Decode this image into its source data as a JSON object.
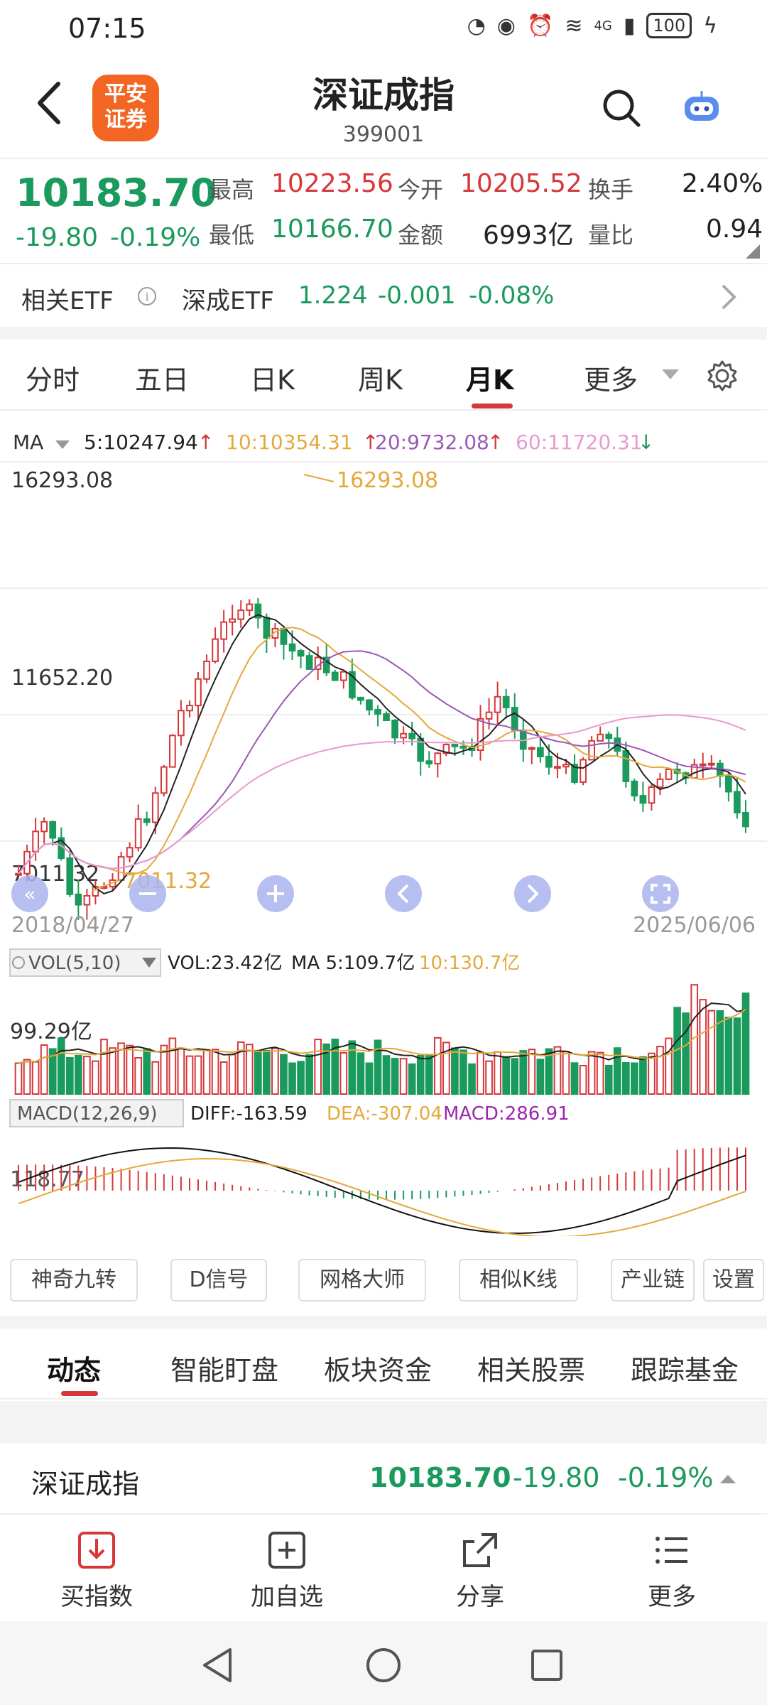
{
  "status_bar": {
    "time": "07:15",
    "network": "4G",
    "battery": "100"
  },
  "header": {
    "title": "深证成指",
    "code": "399001",
    "logo_line1": "平安",
    "logo_line2": "证券"
  },
  "quote": {
    "price": "10183.70",
    "change": "-19.80",
    "change_pct": "-0.19%",
    "high_label": "最高",
    "high": "10223.56",
    "open_label": "今开",
    "open": "10205.52",
    "turnover_label": "换手",
    "turnover": "2.40%",
    "low_label": "最低",
    "low": "10166.70",
    "amount_label": "金额",
    "amount": "6993亿",
    "vol_ratio_label": "量比",
    "vol_ratio": "0.94"
  },
  "etf": {
    "label": "相关ETF",
    "name": "深成ETF",
    "price": "1.224",
    "change": "-0.001",
    "change_pct": "-0.08%"
  },
  "period_tabs": [
    "分时",
    "五日",
    "日K",
    "周K",
    "月K",
    "更多"
  ],
  "active_period": "月K",
  "ma": {
    "label": "MA",
    "ma5": "5:10247.94",
    "ma10": "10:10354.31",
    "ma20": "20:9732.08",
    "ma60": "60:11720.31"
  },
  "chart_data": {
    "type": "candlestick",
    "period": "monthly",
    "y_ticks": [
      "16293.08",
      "11652.20",
      "7011.32"
    ],
    "high_label": "16293.08",
    "low_label": "7011.32",
    "date_start": "2018/04/27",
    "date_end": "2025/06/06",
    "ylim": [
      7011.32,
      16293.08
    ],
    "colors": {
      "up": "#d6373a",
      "down": "#1a9a5c",
      "ma5": "#222222",
      "ma10": "#e5a83b",
      "ma20": "#9b59b6",
      "ma60": "#e79ad0"
    },
    "volume": {
      "label": "VOL(5,10)",
      "vol": "VOL:23.42亿",
      "ma5": "MA 5:109.7亿",
      "ma10": "10:130.7亿",
      "y_tick": "99.29亿"
    },
    "macd": {
      "label": "MACD(12,26,9)",
      "diff": "DIFF:-163.59",
      "dea": "DEA:-307.04",
      "macd": "MACD:286.91",
      "y_tick": "118.77"
    }
  },
  "tools": [
    "神奇九转",
    "D信号",
    "网格大师",
    "相似K线",
    "产业链",
    "设置"
  ],
  "info_tabs": [
    "动态",
    "智能盯盘",
    "板块资金",
    "相关股票",
    "跟踪基金"
  ],
  "mini_quote": {
    "name": "深证成指",
    "price": "10183.70",
    "change": "-19.80",
    "change_pct": "-0.19%"
  },
  "actions": [
    {
      "label": "买指数",
      "icon": "download-icon"
    },
    {
      "label": "加自选",
      "icon": "add-box-icon"
    },
    {
      "label": "分享",
      "icon": "share-icon"
    },
    {
      "label": "更多",
      "icon": "list-icon"
    }
  ]
}
